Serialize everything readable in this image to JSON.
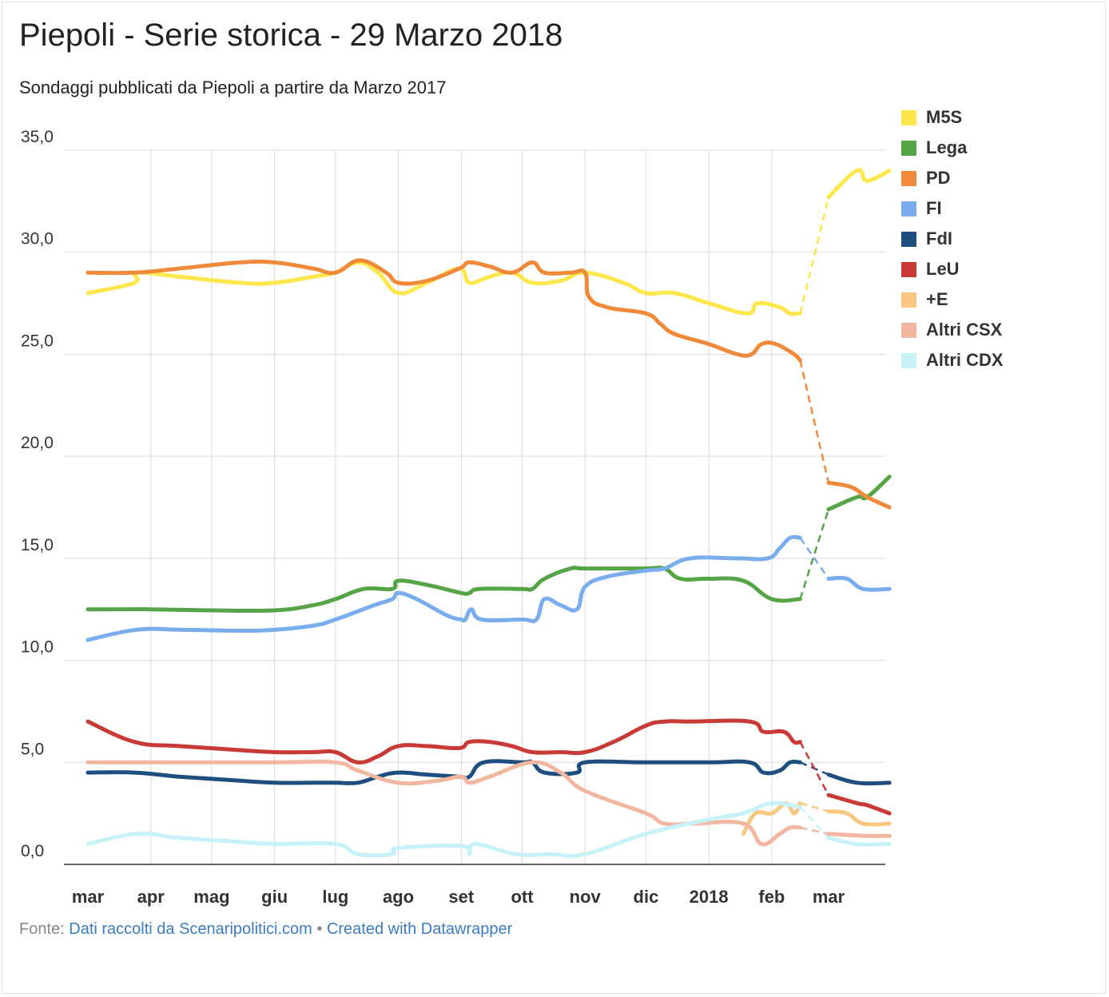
{
  "title": "Piepoli - Serie storica - 29 Marzo 2018",
  "subtitle": "Sondaggi pubblicati da Piepoli a partire da Marzo 2017",
  "footer": {
    "prefix": "Fonte: ",
    "source_link": "Dati raccolti da Scenaripolitici.com",
    "separator": " • ",
    "credit_link": "Created with Datawrapper"
  },
  "chart_data": {
    "type": "line",
    "ylim": [
      0,
      35
    ],
    "y_ticks": [
      "0,0",
      "5,0",
      "10,0",
      "15,0",
      "20,0",
      "25,0",
      "30,0",
      "35,0"
    ],
    "x_ticks": [
      {
        "label": "mar",
        "date": "2017-03-01"
      },
      {
        "label": "apr",
        "date": "2017-04-01"
      },
      {
        "label": "mag",
        "date": "2017-05-01"
      },
      {
        "label": "giu",
        "date": "2017-06-01"
      },
      {
        "label": "lug",
        "date": "2017-07-01"
      },
      {
        "label": "ago",
        "date": "2017-08-01"
      },
      {
        "label": "set",
        "date": "2017-09-01"
      },
      {
        "label": "ott",
        "date": "2017-10-01"
      },
      {
        "label": "nov",
        "date": "2017-11-01"
      },
      {
        "label": "dic",
        "date": "2017-12-01"
      },
      {
        "label": "2018",
        "date": "2018-01-01"
      },
      {
        "label": "feb",
        "date": "2018-02-01"
      },
      {
        "label": "mar",
        "date": "2018-03-01"
      }
    ],
    "grid": "vertical and horizontal",
    "legend_position": "right",
    "gap": {
      "from": "2018-02-15",
      "to": "2018-03-01",
      "style": "dashed"
    },
    "series": [
      {
        "name": "M5S",
        "color": "#fde74c",
        "points": [
          [
            "2017-03-01",
            28.0
          ],
          [
            "2017-03-24",
            28.5
          ],
          [
            "2017-03-25",
            29.0
          ],
          [
            "2017-04-15",
            28.8
          ],
          [
            "2017-05-15",
            28.5
          ],
          [
            "2017-06-01",
            28.5
          ],
          [
            "2017-06-20",
            28.8
          ],
          [
            "2017-07-01",
            29.0
          ],
          [
            "2017-07-12",
            29.5
          ],
          [
            "2017-07-22",
            29.0
          ],
          [
            "2017-08-01",
            28.0
          ],
          [
            "2017-08-15",
            28.5
          ],
          [
            "2017-08-31",
            29.2
          ],
          [
            "2017-09-05",
            28.5
          ],
          [
            "2017-09-15",
            28.8
          ],
          [
            "2017-09-26",
            29.0
          ],
          [
            "2017-10-06",
            28.5
          ],
          [
            "2017-10-20",
            28.6
          ],
          [
            "2017-11-01",
            29.0
          ],
          [
            "2017-11-20",
            28.5
          ],
          [
            "2017-12-01",
            28.0
          ],
          [
            "2017-12-15",
            28.0
          ],
          [
            "2018-01-01",
            27.5
          ],
          [
            "2018-01-20",
            27.0
          ],
          [
            "2018-01-25",
            27.5
          ],
          [
            "2018-02-05",
            27.3
          ],
          [
            "2018-02-10",
            27.0
          ],
          [
            "2018-02-15",
            27.0
          ],
          [
            "2018-03-01",
            32.7
          ],
          [
            "2018-03-15",
            34.0
          ],
          [
            "2018-03-20",
            33.5
          ],
          [
            "2018-03-31",
            34.0
          ]
        ]
      },
      {
        "name": "Lega",
        "color": "#55a446",
        "points": [
          [
            "2017-03-01",
            12.5
          ],
          [
            "2017-04-01",
            12.5
          ],
          [
            "2017-05-01",
            12.45
          ],
          [
            "2017-06-01",
            12.45
          ],
          [
            "2017-06-20",
            12.7
          ],
          [
            "2017-07-01",
            13.0
          ],
          [
            "2017-07-15",
            13.5
          ],
          [
            "2017-07-29",
            13.5
          ],
          [
            "2017-08-01",
            13.9
          ],
          [
            "2017-08-15",
            13.7
          ],
          [
            "2017-09-01",
            13.3
          ],
          [
            "2017-09-05",
            13.3
          ],
          [
            "2017-09-10",
            13.5
          ],
          [
            "2017-10-01",
            13.5
          ],
          [
            "2017-10-06",
            13.5
          ],
          [
            "2017-10-12",
            14.0
          ],
          [
            "2017-10-25",
            14.5
          ],
          [
            "2017-11-01",
            14.5
          ],
          [
            "2017-11-30",
            14.5
          ],
          [
            "2017-12-10",
            14.5
          ],
          [
            "2017-12-18",
            14.0
          ],
          [
            "2018-01-01",
            14.0
          ],
          [
            "2018-01-18",
            13.9
          ],
          [
            "2018-02-01",
            13.0
          ],
          [
            "2018-02-15",
            13.0
          ],
          [
            "2018-03-01",
            17.4
          ],
          [
            "2018-03-15",
            18.0
          ],
          [
            "2018-03-20",
            18.0
          ],
          [
            "2018-03-31",
            19.0
          ]
        ]
      },
      {
        "name": "PD",
        "color": "#f08a3b",
        "points": [
          [
            "2017-03-01",
            29.0
          ],
          [
            "2017-03-24",
            29.0
          ],
          [
            "2017-04-15",
            29.2
          ],
          [
            "2017-05-15",
            29.5
          ],
          [
            "2017-06-01",
            29.5
          ],
          [
            "2017-06-20",
            29.2
          ],
          [
            "2017-07-01",
            29.0
          ],
          [
            "2017-07-13",
            29.6
          ],
          [
            "2017-07-26",
            29.0
          ],
          [
            "2017-08-01",
            28.5
          ],
          [
            "2017-08-15",
            28.6
          ],
          [
            "2017-08-31",
            29.2
          ],
          [
            "2017-09-05",
            29.5
          ],
          [
            "2017-09-15",
            29.3
          ],
          [
            "2017-09-26",
            29.0
          ],
          [
            "2017-10-06",
            29.5
          ],
          [
            "2017-10-12",
            29.0
          ],
          [
            "2017-10-25",
            29.0
          ],
          [
            "2017-11-01",
            29.0
          ],
          [
            "2017-11-03",
            27.8
          ],
          [
            "2017-11-12",
            27.3
          ],
          [
            "2017-12-01",
            27.0
          ],
          [
            "2017-12-08",
            26.5
          ],
          [
            "2017-12-15",
            26.0
          ],
          [
            "2018-01-01",
            25.5
          ],
          [
            "2018-01-15",
            25.0
          ],
          [
            "2018-01-22",
            25.0
          ],
          [
            "2018-01-27",
            25.5
          ],
          [
            "2018-02-03",
            25.5
          ],
          [
            "2018-02-12",
            25.0
          ],
          [
            "2018-02-15",
            24.7
          ],
          [
            "2018-03-01",
            18.7
          ],
          [
            "2018-03-12",
            18.5
          ],
          [
            "2018-03-20",
            18.0
          ],
          [
            "2018-03-31",
            17.5
          ]
        ]
      },
      {
        "name": "FI",
        "color": "#7aadee",
        "points": [
          [
            "2017-03-01",
            11.0
          ],
          [
            "2017-03-25",
            11.5
          ],
          [
            "2017-04-15",
            11.5
          ],
          [
            "2017-05-15",
            11.45
          ],
          [
            "2017-06-01",
            11.5
          ],
          [
            "2017-06-20",
            11.7
          ],
          [
            "2017-07-01",
            12.0
          ],
          [
            "2017-07-20",
            12.7
          ],
          [
            "2017-07-29",
            13.0
          ],
          [
            "2017-08-01",
            13.3
          ],
          [
            "2017-08-10",
            13.0
          ],
          [
            "2017-08-25",
            12.2
          ],
          [
            "2017-09-01",
            12.0
          ],
          [
            "2017-09-03",
            12.0
          ],
          [
            "2017-09-06",
            12.5
          ],
          [
            "2017-09-11",
            12.0
          ],
          [
            "2017-10-01",
            12.0
          ],
          [
            "2017-10-08",
            12.0
          ],
          [
            "2017-10-12",
            13.0
          ],
          [
            "2017-10-20",
            12.7
          ],
          [
            "2017-10-28",
            12.5
          ],
          [
            "2017-11-01",
            13.6
          ],
          [
            "2017-11-12",
            14.1
          ],
          [
            "2017-12-01",
            14.4
          ],
          [
            "2017-12-10",
            14.5
          ],
          [
            "2017-12-23",
            15.0
          ],
          [
            "2018-01-15",
            15.0
          ],
          [
            "2018-01-30",
            15.0
          ],
          [
            "2018-02-05",
            15.5
          ],
          [
            "2018-02-10",
            16.0
          ],
          [
            "2018-02-15",
            16.0
          ],
          [
            "2018-03-01",
            14.0
          ],
          [
            "2018-03-10",
            14.0
          ],
          [
            "2018-03-18",
            13.5
          ],
          [
            "2018-03-31",
            13.5
          ]
        ]
      },
      {
        "name": "FdI",
        "color": "#1e4d80",
        "points": [
          [
            "2017-03-01",
            4.5
          ],
          [
            "2017-03-24",
            4.5
          ],
          [
            "2017-04-15",
            4.3
          ],
          [
            "2017-05-15",
            4.1
          ],
          [
            "2017-06-01",
            4.0
          ],
          [
            "2017-06-20",
            4.0
          ],
          [
            "2017-07-01",
            4.0
          ],
          [
            "2017-07-12",
            4.0
          ],
          [
            "2017-07-22",
            4.3
          ],
          [
            "2017-08-01",
            4.5
          ],
          [
            "2017-08-15",
            4.4
          ],
          [
            "2017-08-31",
            4.3
          ],
          [
            "2017-09-05",
            4.3
          ],
          [
            "2017-09-12",
            5.0
          ],
          [
            "2017-10-01",
            5.0
          ],
          [
            "2017-10-06",
            5.0
          ],
          [
            "2017-10-12",
            4.5
          ],
          [
            "2017-10-28",
            4.5
          ],
          [
            "2017-11-01",
            5.0
          ],
          [
            "2017-11-30",
            5.0
          ],
          [
            "2018-01-01",
            5.0
          ],
          [
            "2018-01-21",
            5.0
          ],
          [
            "2018-01-28",
            4.5
          ],
          [
            "2018-02-05",
            4.6
          ],
          [
            "2018-02-10",
            5.0
          ],
          [
            "2018-02-15",
            5.0
          ],
          [
            "2018-03-01",
            4.4
          ],
          [
            "2018-03-15",
            4.0
          ],
          [
            "2018-03-31",
            4.0
          ]
        ]
      },
      {
        "name": "LeU",
        "color": "#c93a36",
        "points": [
          [
            "2017-03-01",
            7.0
          ],
          [
            "2017-03-24",
            6.0
          ],
          [
            "2017-04-15",
            5.8
          ],
          [
            "2017-05-15",
            5.6
          ],
          [
            "2017-06-01",
            5.5
          ],
          [
            "2017-06-20",
            5.5
          ],
          [
            "2017-07-01",
            5.5
          ],
          [
            "2017-07-12",
            5.0
          ],
          [
            "2017-07-22",
            5.3
          ],
          [
            "2017-08-01",
            5.8
          ],
          [
            "2017-08-15",
            5.8
          ],
          [
            "2017-08-31",
            5.7
          ],
          [
            "2017-09-05",
            6.0
          ],
          [
            "2017-09-15",
            6.0
          ],
          [
            "2017-09-26",
            5.8
          ],
          [
            "2017-10-06",
            5.5
          ],
          [
            "2017-10-20",
            5.5
          ],
          [
            "2017-11-01",
            5.5
          ],
          [
            "2017-11-15",
            6.0
          ],
          [
            "2017-12-01",
            6.8
          ],
          [
            "2017-12-10",
            7.0
          ],
          [
            "2017-12-23",
            7.0
          ],
          [
            "2018-01-21",
            7.0
          ],
          [
            "2018-01-28",
            6.5
          ],
          [
            "2018-02-07",
            6.5
          ],
          [
            "2018-02-12",
            6.0
          ],
          [
            "2018-02-15",
            6.0
          ],
          [
            "2018-03-01",
            3.4
          ],
          [
            "2018-03-15",
            3.0
          ],
          [
            "2018-03-20",
            2.9
          ],
          [
            "2018-03-31",
            2.5
          ]
        ]
      },
      {
        "name": "+E",
        "color": "#f8c880",
        "points": [
          [
            "2018-01-18",
            1.5
          ],
          [
            "2018-01-24",
            2.5
          ],
          [
            "2018-02-01",
            2.5
          ],
          [
            "2018-02-08",
            3.0
          ],
          [
            "2018-02-12",
            2.5
          ],
          [
            "2018-02-15",
            3.0
          ],
          [
            "2018-03-01",
            2.6
          ],
          [
            "2018-03-10",
            2.5
          ],
          [
            "2018-03-18",
            2.0
          ],
          [
            "2018-03-31",
            2.0
          ]
        ]
      },
      {
        "name": "Altri CSX",
        "color": "#f2b7a0",
        "points": [
          [
            "2017-03-01",
            5.0
          ],
          [
            "2017-04-15",
            5.0
          ],
          [
            "2017-06-01",
            5.0
          ],
          [
            "2017-07-01",
            5.0
          ],
          [
            "2017-07-12",
            4.6
          ],
          [
            "2017-08-01",
            4.0
          ],
          [
            "2017-08-20",
            4.1
          ],
          [
            "2017-09-01",
            4.3
          ],
          [
            "2017-09-05",
            4.0
          ],
          [
            "2017-09-15",
            4.3
          ],
          [
            "2017-10-06",
            5.0
          ],
          [
            "2017-10-20",
            4.5
          ],
          [
            "2017-11-01",
            3.6
          ],
          [
            "2017-12-01",
            2.5
          ],
          [
            "2017-12-10",
            2.0
          ],
          [
            "2017-12-25",
            2.0
          ],
          [
            "2018-01-18",
            2.0
          ],
          [
            "2018-01-27",
            1.0
          ],
          [
            "2018-02-05",
            1.5
          ],
          [
            "2018-02-10",
            1.8
          ],
          [
            "2018-02-15",
            1.8
          ],
          [
            "2018-03-01",
            1.5
          ],
          [
            "2018-03-18",
            1.4
          ],
          [
            "2018-03-31",
            1.4
          ]
        ]
      },
      {
        "name": "Altri CDX",
        "color": "#c6f2f8",
        "points": [
          [
            "2017-03-01",
            1.0
          ],
          [
            "2017-03-25",
            1.5
          ],
          [
            "2017-04-15",
            1.3
          ],
          [
            "2017-05-15",
            1.1
          ],
          [
            "2017-06-01",
            1.0
          ],
          [
            "2017-07-01",
            1.0
          ],
          [
            "2017-07-12",
            0.5
          ],
          [
            "2017-07-29",
            0.5
          ],
          [
            "2017-08-01",
            0.8
          ],
          [
            "2017-09-01",
            0.9
          ],
          [
            "2017-09-05",
            0.5
          ],
          [
            "2017-09-08",
            1.0
          ],
          [
            "2017-09-28",
            0.5
          ],
          [
            "2017-10-15",
            0.5
          ],
          [
            "2017-11-01",
            0.5
          ],
          [
            "2017-12-01",
            1.5
          ],
          [
            "2018-01-01",
            2.2
          ],
          [
            "2018-01-18",
            2.5
          ],
          [
            "2018-02-01",
            3.0
          ],
          [
            "2018-02-15",
            2.8
          ],
          [
            "2018-03-01",
            1.3
          ],
          [
            "2018-03-15",
            1.0
          ],
          [
            "2018-03-31",
            1.0
          ]
        ]
      }
    ]
  }
}
